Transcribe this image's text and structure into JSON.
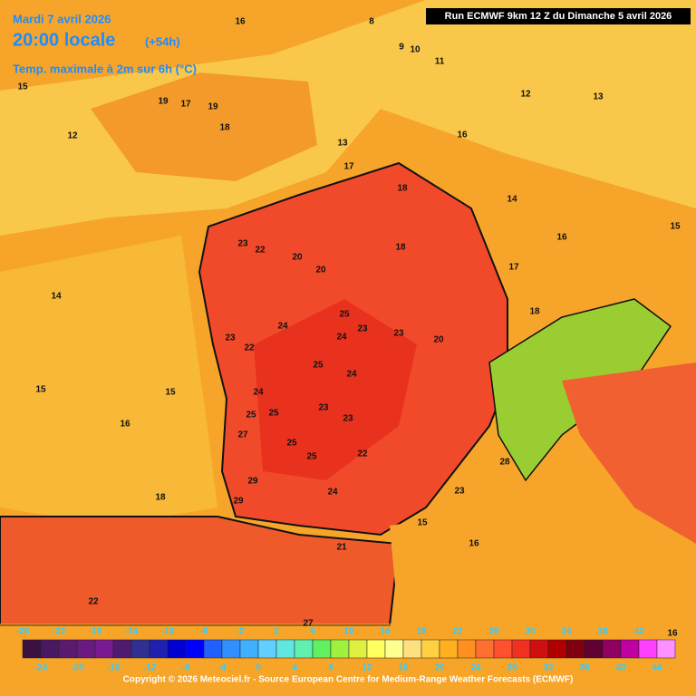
{
  "header": {
    "date": "Mardi 7 avril 2026",
    "time": "20:00 locale",
    "lead": "(+54h)",
    "parameter": "Temp. maximale à 2m sur 6h (°C)",
    "run": "Run ECMWF 9km 12 Z du Dimanche 5 avril 2026"
  },
  "map": {
    "labels": [
      "16",
      "8",
      "9",
      "10",
      "11",
      "15",
      "19",
      "17",
      "19",
      "18",
      "12",
      "13",
      "16",
      "12",
      "13",
      "17",
      "18",
      "14",
      "15",
      "23",
      "22",
      "18",
      "16",
      "20",
      "20",
      "14",
      "17",
      "25",
      "23",
      "24",
      "24",
      "23",
      "20",
      "18",
      "23",
      "22",
      "25",
      "24",
      "15",
      "15",
      "24",
      "25",
      "25",
      "23",
      "23",
      "16",
      "27",
      "25",
      "25",
      "22",
      "28",
      "29",
      "29",
      "24",
      "23",
      "18",
      "15",
      "16",
      "21",
      "22",
      "27",
      "16"
    ]
  },
  "scale": {
    "top_labels": [
      -26,
      -22,
      -18,
      -14,
      -10,
      -6,
      -2,
      2,
      6,
      10,
      14,
      18,
      22,
      26,
      30,
      34,
      38,
      42
    ],
    "bottom_labels": [
      -24,
      -20,
      -16,
      -12,
      -8,
      -4,
      0,
      4,
      8,
      12,
      16,
      20,
      24,
      28,
      32,
      36,
      40,
      44
    ],
    "colors": [
      "#3a1040",
      "#4a1860",
      "#5a1a70",
      "#6a1a80",
      "#7a1a90",
      "#501a70",
      "#303090",
      "#2020b0",
      "#0000d0",
      "#0000ff",
      "#2060ff",
      "#3090ff",
      "#40b0ff",
      "#60d0ff",
      "#60e8e0",
      "#60f0b0",
      "#60f060",
      "#a0f040",
      "#e0f040",
      "#ffff60",
      "#ffff90",
      "#ffe080",
      "#ffd040",
      "#ffb020",
      "#ff9020",
      "#ff7030",
      "#ff5030",
      "#f03020",
      "#d01010",
      "#b00000",
      "#800010",
      "#600030",
      "#900060",
      "#c000a0",
      "#ff40ff",
      "#ff90ff"
    ]
  },
  "footer": {
    "copyright": "Copyright © 2026 Meteociel.fr - Source European Centre for Medium-Range Weather Forecasts (ECMWF)"
  }
}
